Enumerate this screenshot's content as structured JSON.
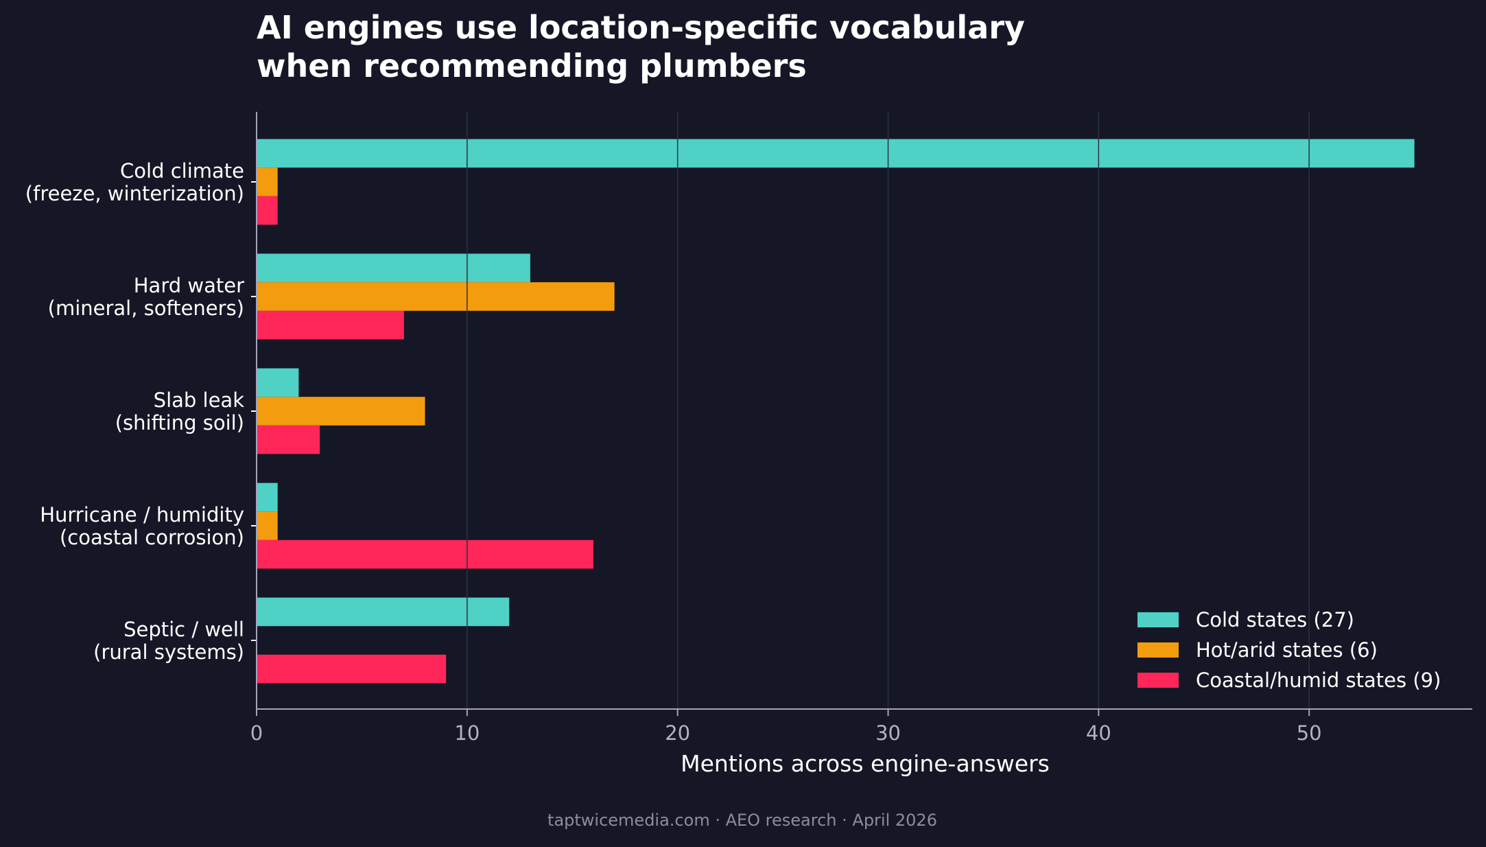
{
  "chart_data": {
    "type": "bar",
    "orientation": "horizontal",
    "title": [
      "AI engines use location-specific vocabulary",
      "when recommending plumbers"
    ],
    "xlabel": "Mentions across engine-answers",
    "ylabel": "",
    "categories": [
      [
        "Cold climate",
        "(freeze, winterization)"
      ],
      [
        "Hard water",
        "(mineral, softeners)"
      ],
      [
        "Slab leak",
        "(shifting soil)"
      ],
      [
        "Hurricane / humidity",
        "(coastal corrosion)"
      ],
      [
        "Septic / well",
        "(rural systems)"
      ]
    ],
    "series": [
      {
        "name": "Cold states (27)",
        "color": "#4fd1c5",
        "values": [
          55,
          13,
          2,
          1,
          12
        ]
      },
      {
        "name": "Hot/arid states (6)",
        "color": "#f39c0e",
        "values": [
          1,
          17,
          8,
          1,
          0
        ]
      },
      {
        "name": "Coastal/humid states (9)",
        "color": "#ff2759",
        "values": [
          1,
          7,
          3,
          16,
          9
        ]
      }
    ],
    "xlim": [
      0,
      57.75
    ],
    "xticks": [
      0,
      10,
      20,
      30,
      40,
      50
    ],
    "grid": "vertical",
    "legend": "bottom-right",
    "background": "#151726"
  },
  "footer": "taptwicemedia.com · AEO research · April 2026"
}
